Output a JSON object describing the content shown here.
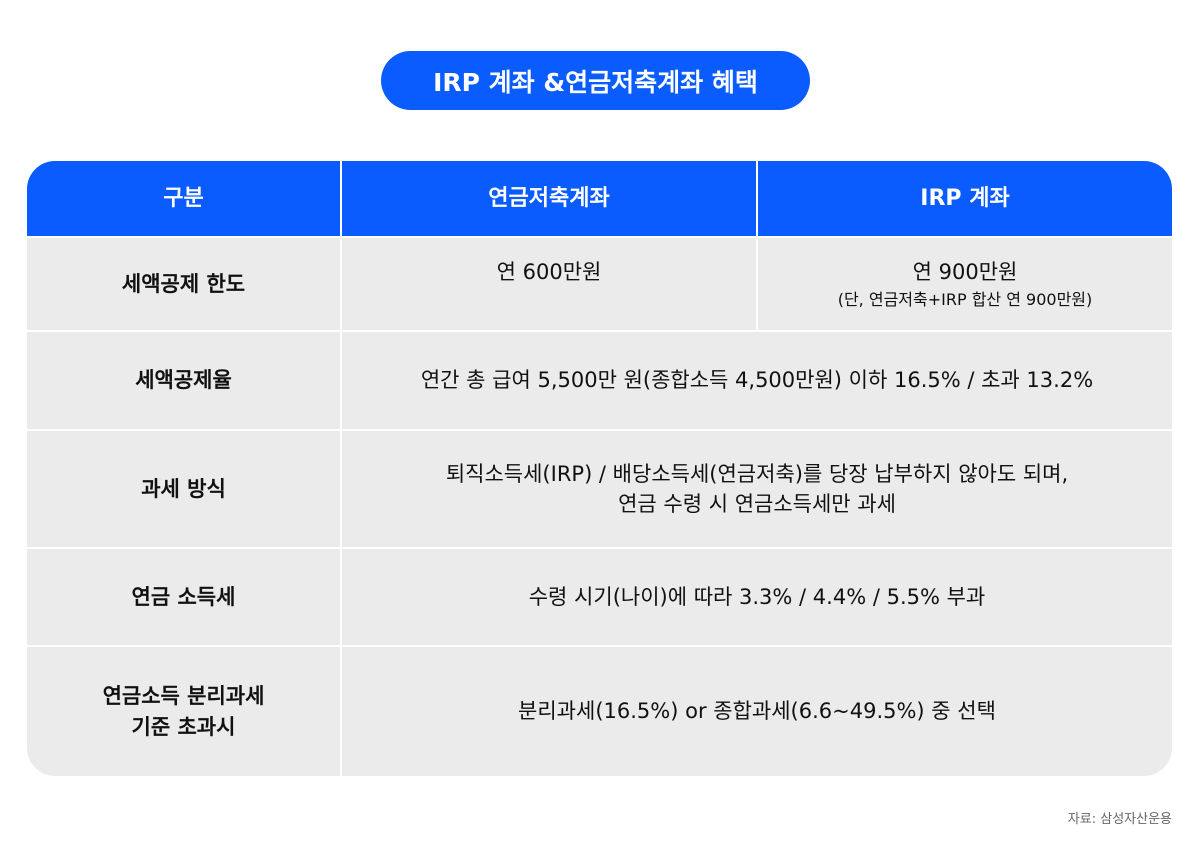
{
  "title": "IRP 계좌 &연금저축계좌 혜택",
  "table": {
    "headers": [
      "구분",
      "연금저축계좌",
      "IRP 계좌"
    ],
    "rows": [
      {
        "label": "세액공제 한도",
        "pension": "연 600만원",
        "irp": "연 900만원",
        "irp_note": "(단, 연금저축+IRP 합산 연 900만원)"
      },
      {
        "label": "세액공제율",
        "value": "연간 총 급여 5,500만 원(종합소득 4,500만원) 이하 16.5% / 초과 13.2%"
      },
      {
        "label": "과세 방식",
        "value_line1": "퇴직소득세(IRP) / 배당소득세(연금저축)를 당장 납부하지 않아도 되며,",
        "value_line2": "연금 수령 시 연금소득세만 과세"
      },
      {
        "label": "연금 소득세",
        "value": "수령 시기(나이)에 따라 3.3% / 4.4% / 5.5% 부과"
      },
      {
        "label_line1": "연금소득 분리과세",
        "label_line2": "기준 초과시",
        "value": "분리과세(16.5%) or 종합과세(6.6~49.5%) 중 선택"
      }
    ]
  },
  "source": "자료: 삼성자산운용",
  "colors": {
    "accent": "#0a5cff",
    "cell_bg": "#ebebeb"
  }
}
